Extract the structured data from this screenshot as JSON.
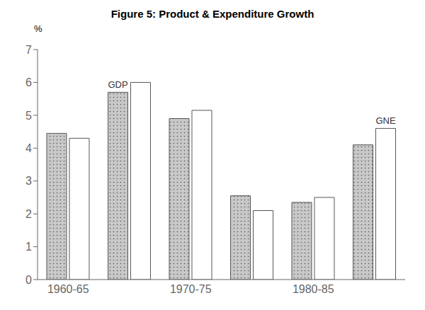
{
  "chart_data": {
    "type": "bar",
    "title": "Figure 5: Product & Expenditure Growth",
    "y_label": "%",
    "categories": [
      "1960-65",
      null,
      "1970-75",
      null,
      "1980-85",
      null
    ],
    "series": [
      {
        "name": "GDP",
        "color": "#c8c8c8",
        "values": [
          4.45,
          5.7,
          4.9,
          2.55,
          2.35,
          4.1
        ]
      },
      {
        "name": "GNE",
        "color": "#ffffff",
        "values": [
          4.3,
          6.0,
          5.15,
          2.1,
          2.5,
          4.6
        ]
      }
    ],
    "annotations": [
      {
        "text": "GDP",
        "series": "GDP",
        "index": 1
      },
      {
        "text": "GNE",
        "series": "GNE",
        "index": 5
      }
    ],
    "ylim": [
      0,
      7
    ],
    "yticks": [
      0,
      1,
      2,
      3,
      4,
      5,
      6,
      7
    ],
    "grid": false
  }
}
